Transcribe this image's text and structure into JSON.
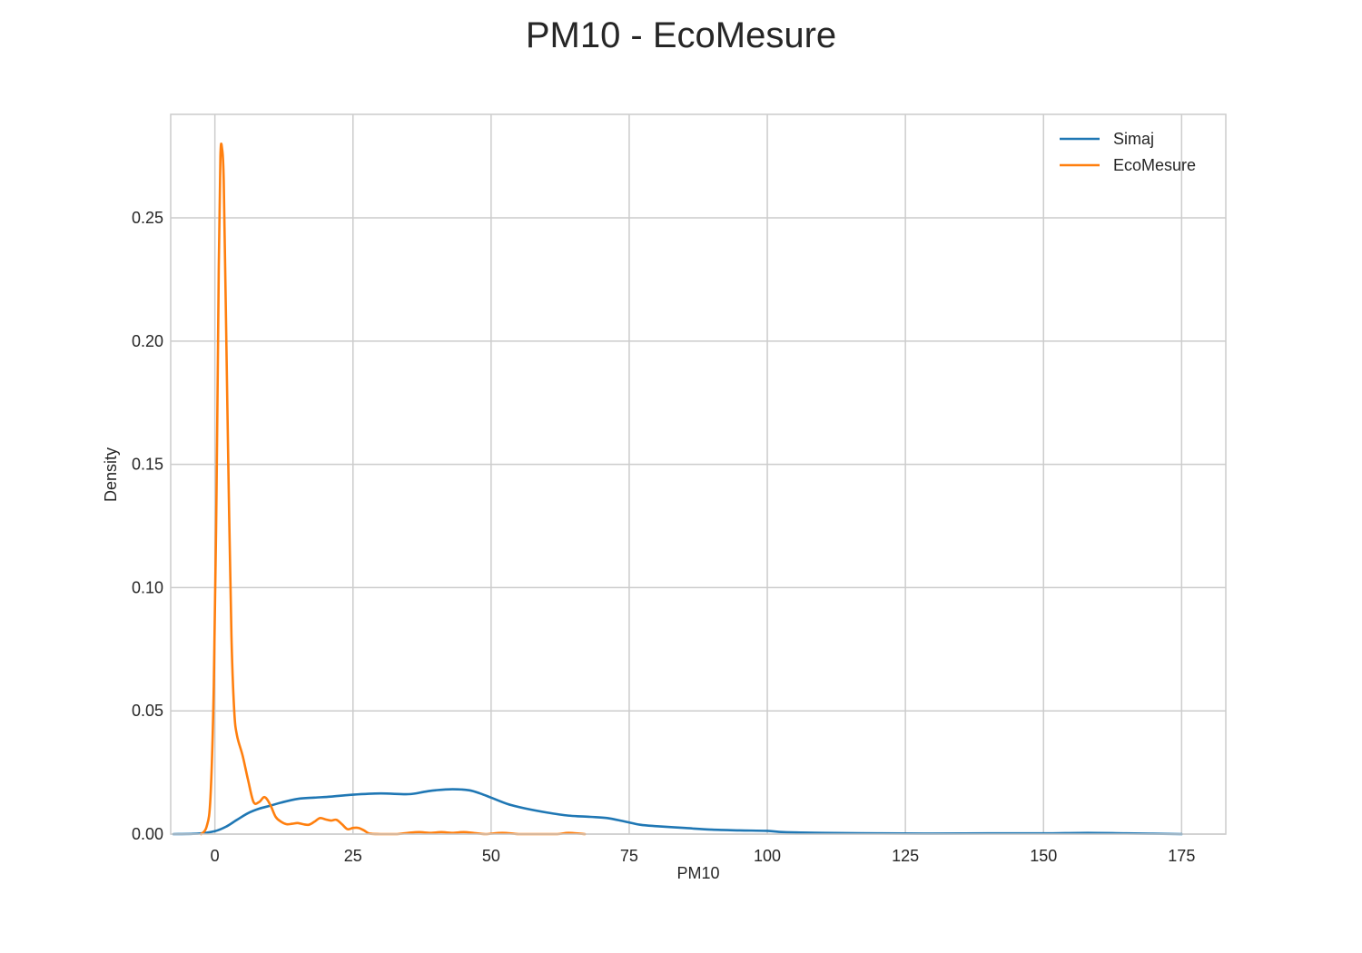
{
  "chart_data": {
    "type": "line",
    "title": "PM10 - EcoMesure",
    "xlabel": "PM10",
    "ylabel": "Density",
    "xlim": [
      -8,
      183
    ],
    "ylim": [
      0,
      0.292
    ],
    "xticks": [
      0,
      25,
      50,
      75,
      100,
      125,
      150,
      175
    ],
    "xtick_labels": [
      "0",
      "25",
      "50",
      "75",
      "100",
      "125",
      "150",
      "175"
    ],
    "yticks": [
      0.0,
      0.05,
      0.1,
      0.15,
      0.2,
      0.25
    ],
    "ytick_labels": [
      "0.00",
      "0.05",
      "0.10",
      "0.15",
      "0.20",
      "0.25"
    ],
    "grid": true,
    "legend_position": "top-right",
    "series": [
      {
        "name": "Simaj",
        "color": "#1f77b4",
        "x": [
          -7.5,
          -3,
          0,
          2,
          4,
          6,
          8,
          10,
          12,
          15,
          18,
          21,
          25,
          30,
          35,
          38,
          40,
          43,
          46,
          48,
          50,
          53,
          56,
          60,
          64,
          68,
          71,
          74,
          77,
          80,
          85,
          90,
          95,
          100,
          103,
          110,
          120,
          130,
          140,
          150,
          158,
          165,
          175
        ],
        "y": [
          0.0,
          0.0002,
          0.0012,
          0.003,
          0.0058,
          0.0085,
          0.0103,
          0.0115,
          0.0128,
          0.0143,
          0.0148,
          0.0152,
          0.016,
          0.0165,
          0.0162,
          0.0172,
          0.0178,
          0.0182,
          0.0178,
          0.0165,
          0.0148,
          0.0122,
          0.0105,
          0.0088,
          0.0075,
          0.007,
          0.0065,
          0.0052,
          0.0038,
          0.0032,
          0.0025,
          0.0018,
          0.0015,
          0.0013,
          0.0008,
          0.0005,
          0.0003,
          0.0002,
          0.0003,
          0.0003,
          0.0005,
          0.0003,
          0.0
        ]
      },
      {
        "name": "EcoMesure",
        "color": "#ff7f0e",
        "x": [
          -2.5,
          -1.5,
          -0.8,
          -0.2,
          0.3,
          0.7,
          1.0,
          1.3,
          1.6,
          2.0,
          2.5,
          3.0,
          3.5,
          4.0,
          5.0,
          6.0,
          7.0,
          8.0,
          9.0,
          10.0,
          11.0,
          12.0,
          13.0,
          14.0,
          15.0,
          16.0,
          17.0,
          18.0,
          19.0,
          20.0,
          21.0,
          22.0,
          23.0,
          24.0,
          25.0,
          26.0,
          27.0,
          28.0,
          30.0,
          33.0,
          35.0,
          37.0,
          39.0,
          41.0,
          43.0,
          45.0,
          47.0,
          49.0,
          52.0,
          55.0,
          58.0,
          62.0,
          64.0,
          67.0
        ],
        "y": [
          0.0,
          0.003,
          0.015,
          0.06,
          0.14,
          0.23,
          0.275,
          0.278,
          0.265,
          0.21,
          0.14,
          0.08,
          0.05,
          0.04,
          0.032,
          0.022,
          0.013,
          0.013,
          0.015,
          0.012,
          0.007,
          0.005,
          0.004,
          0.0042,
          0.0045,
          0.004,
          0.0038,
          0.005,
          0.0065,
          0.006,
          0.0055,
          0.0058,
          0.004,
          0.002,
          0.0025,
          0.0025,
          0.0015,
          0.0002,
          0.0,
          0.0,
          0.0005,
          0.0008,
          0.0005,
          0.0008,
          0.0005,
          0.0008,
          0.0004,
          0.0,
          0.0005,
          0.0,
          0.0,
          0.0,
          0.0005,
          0.0
        ]
      }
    ]
  }
}
